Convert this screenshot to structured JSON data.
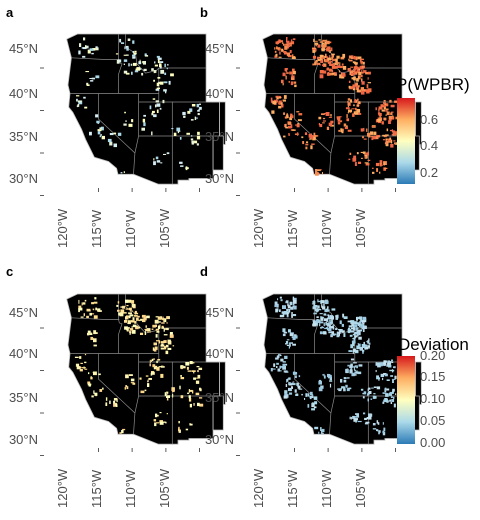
{
  "panels": [
    {
      "letter": "a",
      "fill": "blue-low-sparse"
    },
    {
      "letter": "b",
      "fill": "orange-high"
    },
    {
      "letter": "c",
      "fill": "yellow-mid"
    },
    {
      "letter": "d",
      "fill": "blue-low-dense"
    }
  ],
  "axes": {
    "lat_labels": [
      "45°N",
      "40°N",
      "35°N",
      "30°N"
    ],
    "lat_values": [
      45,
      40,
      35,
      30
    ],
    "lon_labels": [
      "120°W",
      "115°W",
      "110°W",
      "105°W"
    ],
    "lon_values": [
      -120,
      -115,
      -110,
      -105
    ]
  },
  "legends": [
    {
      "title": "P(WPBR)",
      "tick_labels": [
        "0.6",
        "0.4",
        "0.2"
      ],
      "tick_values": [
        0.6,
        0.4,
        0.2
      ],
      "range": [
        0.1,
        0.75
      ],
      "colors": [
        "#d7191c",
        "#fdae61",
        "#ffffbf",
        "#abd9e9",
        "#2c7bb6"
      ]
    },
    {
      "title": "Deviation",
      "tick_labels": [
        "0.20",
        "0.15",
        "0.10",
        "0.05",
        "0.00"
      ],
      "tick_values": [
        0.2,
        0.15,
        0.1,
        0.05,
        0.0
      ],
      "range": [
        0.0,
        0.2
      ],
      "colors": [
        "#d7191c",
        "#fdae61",
        "#ffffbf",
        "#abd9e9",
        "#2c7bb6"
      ]
    }
  ],
  "map_style": {
    "land_color": "#000000",
    "border_color": "#8c8c8c",
    "coast_color": "#bdbdbd"
  }
}
